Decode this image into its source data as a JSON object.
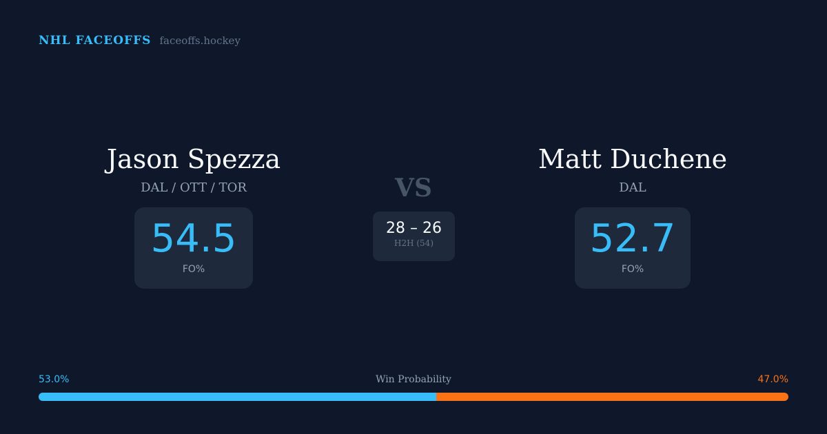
{
  "brand": {
    "name": "NHL FACEOFFS",
    "url": "faceoffs.hockey"
  },
  "player1": {
    "name": "Jason Spezza",
    "teams": "DAL / OTT / TOR",
    "fo_pct": "54.5",
    "fo_label": "FO%"
  },
  "player2": {
    "name": "Matt Duchene",
    "teams": "DAL",
    "fo_pct": "52.7",
    "fo_label": "FO%"
  },
  "vs": "VS",
  "h2h": {
    "score": "28 – 26",
    "label": "H2H (54)"
  },
  "win_probability": {
    "title": "Win Probability",
    "left_label": "53.0%",
    "right_label": "47.0%",
    "left_pct": 53.0,
    "right_pct": 47.0,
    "left_color": "#38bdf8",
    "right_color": "#f97316"
  }
}
